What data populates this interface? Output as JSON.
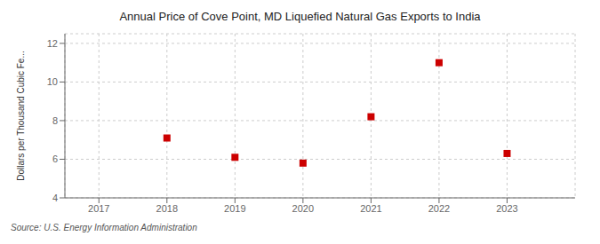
{
  "chart_data": {
    "type": "scatter",
    "title": "Annual Price of Cove Point, MD Liquefied Natural Gas Exports to India",
    "ylabel": "Dollars per Thousand Cubic Fe...",
    "annotations": [
      "Source: U.S. Energy Information Administration"
    ],
    "x": [
      2018,
      2019,
      2020,
      2021,
      2022,
      2023
    ],
    "values": [
      7.1,
      6.1,
      5.8,
      8.2,
      11.0,
      6.3
    ],
    "xlim": [
      2016.5,
      2024
    ],
    "ylim": [
      4,
      12.5
    ],
    "xticks": [
      2017,
      2018,
      2019,
      2020,
      2021,
      2022,
      2023
    ],
    "yticks": [
      4,
      6,
      8,
      10,
      12
    ],
    "color": "#cc0000",
    "marker": "square",
    "grid": true
  }
}
